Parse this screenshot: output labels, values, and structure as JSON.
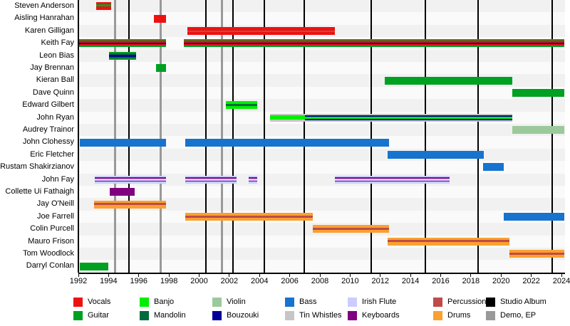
{
  "chart_data": {
    "type": "bar",
    "subtype": "timeline_gantt_band_members",
    "title": "",
    "legend_position": "bottom",
    "grid": "vertical_event_lines",
    "x_axis": {
      "min": 1992,
      "max": 2024,
      "tick_interval": 2,
      "ticks": [
        1992,
        1994,
        1996,
        1998,
        2000,
        2002,
        2004,
        2006,
        2008,
        2010,
        2012,
        2014,
        2016,
        2018,
        2020,
        2022,
        2024
      ]
    },
    "palette": {
      "vocals": "#EE1111",
      "guitar": "#00A020",
      "banjo": "#00EE00",
      "mandolin": "#006B3C",
      "violin": "#9CC99C",
      "bouzouki": "#000099",
      "bass": "#1673CE",
      "tin_whistles": "#C6C6C6",
      "irish_flute": "#CCCCFF",
      "keyboards": "#800080",
      "percussion": "#BE4B48",
      "drums": "#FBA02F",
      "studio_album": "#000000",
      "demo_ep": "#999999"
    },
    "legend": [
      {
        "label": "Vocals",
        "color_key": "vocals",
        "row": 0,
        "col": 0
      },
      {
        "label": "Guitar",
        "color_key": "guitar",
        "row": 1,
        "col": 0
      },
      {
        "label": "Banjo",
        "color_key": "banjo",
        "row": 0,
        "col": 1
      },
      {
        "label": "Mandolin",
        "color_key": "mandolin",
        "row": 1,
        "col": 1
      },
      {
        "label": "Violin",
        "color_key": "violin",
        "row": 0,
        "col": 2
      },
      {
        "label": "Bouzouki",
        "color_key": "bouzouki",
        "row": 1,
        "col": 2
      },
      {
        "label": "Bass",
        "color_key": "bass",
        "row": 0,
        "col": 3
      },
      {
        "label": "Tin Whistles",
        "color_key": "tin_whistles",
        "row": 1,
        "col": 3
      },
      {
        "label": "Irish Flute",
        "color_key": "irish_flute",
        "row": 0,
        "col": 4
      },
      {
        "label": "Keyboards",
        "color_key": "keyboards",
        "row": 1,
        "col": 4
      },
      {
        "label": "Percussion",
        "color_key": "percussion",
        "row": 0,
        "col": 5
      },
      {
        "label": "Drums",
        "color_key": "drums",
        "row": 1,
        "col": 5
      },
      {
        "label": "Studio Album",
        "color_key": "studio_album",
        "row": 0,
        "col": 6
      },
      {
        "label": "Demo, EP",
        "color_key": "demo_ep",
        "row": 1,
        "col": 6
      }
    ],
    "events": {
      "studio_albums_years": [
        1995.35,
        2000.45,
        2002.25,
        2004.3,
        2006.95,
        2011.4,
        2015.0,
        2018.5,
        2023.4
      ],
      "demos_eps_years": [
        1994.45,
        1997.45,
        2001.5
      ]
    },
    "members": [
      {
        "name": "Steven Anderson",
        "segments": [
          {
            "start": 1993.2,
            "end": 1994.15,
            "instruments": [
              "vocals",
              "guitar",
              "vocals"
            ],
            "weights": [
              3,
              3,
              5
            ]
          }
        ]
      },
      {
        "name": "Aisling Hanrahan",
        "segments": [
          {
            "start": 1997.0,
            "end": 1997.8,
            "instruments": [
              "vocals"
            ],
            "weights": [
              1
            ]
          }
        ]
      },
      {
        "name": "Karen Gilligan",
        "segments": [
          {
            "start": 1999.2,
            "end": 2009.0,
            "instruments": [
              "vocals",
              "percussion",
              "vocals"
            ],
            "weights": [
              4.5,
              2,
              4.5
            ]
          }
        ]
      },
      {
        "name": "Keith Fay",
        "segments": [
          {
            "start": 1992.05,
            "end": 1997.8,
            "instruments": [
              "guitar",
              "vocals",
              "bouzouki",
              "vocals",
              "guitar"
            ],
            "weights": [
              2,
              2.5,
              2,
              2.5,
              2
            ]
          },
          {
            "start": 1999.0,
            "end": 2024.2,
            "instruments": [
              "guitar",
              "vocals",
              "bouzouki",
              "vocals",
              "guitar"
            ],
            "weights": [
              2,
              2.5,
              2,
              2.5,
              2
            ]
          }
        ]
      },
      {
        "name": "Leon Bias",
        "segments": [
          {
            "start": 1994.05,
            "end": 1995.8,
            "instruments": [
              "guitar",
              "mandolin",
              "bouzouki",
              "mandolin",
              "guitar"
            ],
            "weights": [
              2,
              2,
              3,
              2,
              2
            ]
          }
        ]
      },
      {
        "name": "Jay Brennan",
        "segments": [
          {
            "start": 1997.15,
            "end": 1997.8,
            "instruments": [
              "guitar"
            ],
            "weights": [
              1
            ]
          }
        ]
      },
      {
        "name": "Kieran Ball",
        "segments": [
          {
            "start": 2012.3,
            "end": 2020.75,
            "instruments": [
              "guitar"
            ],
            "weights": [
              1
            ]
          }
        ]
      },
      {
        "name": "Dave Quinn",
        "segments": [
          {
            "start": 2020.75,
            "end": 2024.2,
            "instruments": [
              "guitar"
            ],
            "weights": [
              1
            ]
          }
        ]
      },
      {
        "name": "Edward Gilbert",
        "segments": [
          {
            "start": 2001.75,
            "end": 2003.85,
            "instruments": [
              "banjo",
              "mandolin",
              "banjo"
            ],
            "weights": [
              4,
              3,
              4
            ]
          }
        ]
      },
      {
        "name": "John Ryan",
        "segments": [
          {
            "start": 2004.7,
            "end": 2007.0,
            "instruments": [
              "tin_whistles",
              "banjo",
              "tin_whistles"
            ],
            "weights": [
              2.5,
              6,
              2.5
            ]
          },
          {
            "start": 2007.0,
            "end": 2020.75,
            "instruments": [
              "tin_whistles",
              "bouzouki",
              "banjo",
              "bouzouki",
              "tin_whistles"
            ],
            "weights": [
              2,
              2,
              3,
              2,
              2
            ]
          }
        ]
      },
      {
        "name": "Audrey Trainor",
        "segments": [
          {
            "start": 2020.75,
            "end": 2024.2,
            "instruments": [
              "violin"
            ],
            "weights": [
              1
            ]
          }
        ]
      },
      {
        "name": "John Clohessy",
        "segments": [
          {
            "start": 1992.1,
            "end": 1997.8,
            "instruments": [
              "bass"
            ],
            "weights": [
              1
            ]
          },
          {
            "start": 1999.1,
            "end": 2012.6,
            "instruments": [
              "bass"
            ],
            "weights": [
              1
            ]
          }
        ]
      },
      {
        "name": "Eric Fletcher",
        "segments": [
          {
            "start": 2012.5,
            "end": 2018.85,
            "instruments": [
              "bass"
            ],
            "weights": [
              1
            ]
          }
        ]
      },
      {
        "name": "Rustam Shakirzianov",
        "segments": [
          {
            "start": 2018.8,
            "end": 2020.2,
            "instruments": [
              "bass"
            ],
            "weights": [
              1
            ]
          }
        ]
      },
      {
        "name": "John Fay",
        "segments": [
          {
            "start": 1993.1,
            "end": 1997.8,
            "instruments": [
              "irish_flute",
              "keyboards",
              "irish_flute",
              "keyboards",
              "irish_flute"
            ],
            "weights": [
              2.5,
              1.5,
              3,
              1.5,
              2.5
            ]
          },
          {
            "start": 1999.1,
            "end": 2002.5,
            "instruments": [
              "irish_flute",
              "keyboards",
              "irish_flute",
              "keyboards",
              "irish_flute"
            ],
            "weights": [
              2.5,
              1.5,
              3,
              1.5,
              2.5
            ]
          },
          {
            "start": 2003.3,
            "end": 2003.85,
            "instruments": [
              "irish_flute",
              "keyboards",
              "irish_flute",
              "keyboards",
              "irish_flute"
            ],
            "weights": [
              2.5,
              1.5,
              3,
              1.5,
              2.5
            ]
          },
          {
            "start": 2009.0,
            "end": 2016.6,
            "instruments": [
              "irish_flute",
              "keyboards",
              "irish_flute",
              "keyboards",
              "irish_flute"
            ],
            "weights": [
              2.5,
              1.5,
              3,
              1.5,
              2.5
            ]
          }
        ]
      },
      {
        "name": "Collette Ui Fathaigh",
        "segments": [
          {
            "start": 1994.1,
            "end": 1995.75,
            "instruments": [
              "keyboards"
            ],
            "weights": [
              1
            ]
          }
        ]
      },
      {
        "name": "Jay O'Neill",
        "segments": [
          {
            "start": 1993.05,
            "end": 1997.8,
            "instruments": [
              "drums",
              "percussion",
              "drums"
            ],
            "weights": [
              3.5,
              3,
              4.5
            ]
          }
        ]
      },
      {
        "name": "Joe Farrell",
        "segments": [
          {
            "start": 1999.1,
            "end": 2007.55,
            "instruments": [
              "drums",
              "percussion",
              "drums"
            ],
            "weights": [
              3.5,
              3,
              4.5
            ]
          },
          {
            "start": 2020.2,
            "end": 2024.2,
            "instruments": [
              "bass"
            ],
            "weights": [
              1
            ]
          }
        ]
      },
      {
        "name": "Colin Purcell",
        "segments": [
          {
            "start": 2007.55,
            "end": 2012.6,
            "instruments": [
              "drums",
              "percussion",
              "drums"
            ],
            "weights": [
              3.5,
              3,
              4.5
            ]
          }
        ]
      },
      {
        "name": "Mauro Frison",
        "segments": [
          {
            "start": 2012.5,
            "end": 2020.55,
            "instruments": [
              "drums",
              "percussion",
              "drums"
            ],
            "weights": [
              3.5,
              3,
              4.5
            ]
          }
        ]
      },
      {
        "name": "Tom Woodlock",
        "segments": [
          {
            "start": 2020.55,
            "end": 2024.2,
            "instruments": [
              "drums",
              "percussion",
              "drums"
            ],
            "weights": [
              3.5,
              3,
              4.5
            ]
          }
        ]
      },
      {
        "name": "Darryl Conlan",
        "segments": [
          {
            "start": 1992.1,
            "end": 1994.0,
            "instruments": [
              "guitar"
            ],
            "weights": [
              1
            ]
          }
        ]
      }
    ]
  }
}
